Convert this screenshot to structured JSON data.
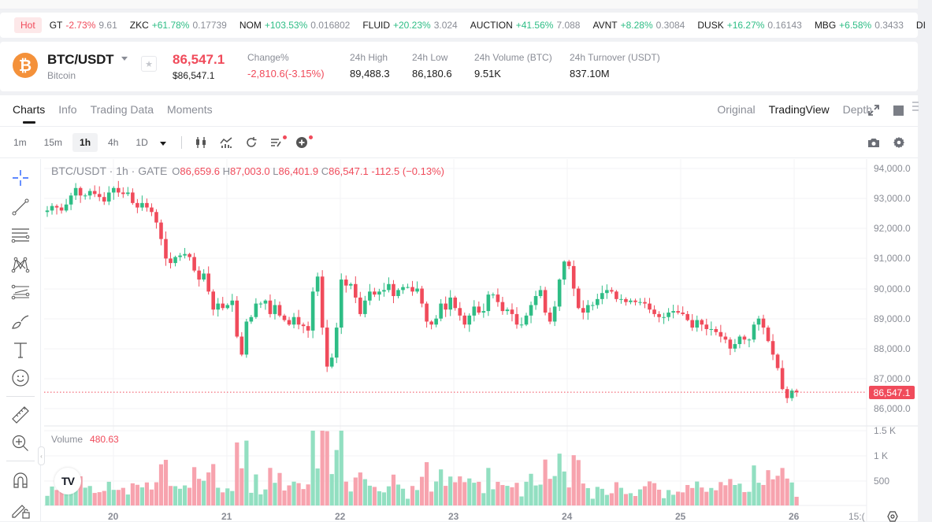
{
  "ticker": {
    "hot_label": "Hot",
    "items": [
      {
        "symbol": "GT",
        "change": "-2.73%",
        "price": "9.61",
        "dir": "neg"
      },
      {
        "symbol": "ZKC",
        "change": "+61.78%",
        "price": "0.17739",
        "dir": "pos"
      },
      {
        "symbol": "NOM",
        "change": "+103.53%",
        "price": "0.016802",
        "dir": "pos"
      },
      {
        "symbol": "FLUID",
        "change": "+20.23%",
        "price": "3.024",
        "dir": "pos"
      },
      {
        "symbol": "AUCTION",
        "change": "+41.56%",
        "price": "7.088",
        "dir": "pos"
      },
      {
        "symbol": "AVNT",
        "change": "+8.28%",
        "price": "0.3084",
        "dir": "pos"
      },
      {
        "symbol": "DUSK",
        "change": "+16.27%",
        "price": "0.16143",
        "dir": "pos"
      },
      {
        "symbol": "MBG",
        "change": "+6.58%",
        "price": "0.3433",
        "dir": "pos"
      },
      {
        "symbol": "DI",
        "change": "",
        "price": "",
        "dir": "pos"
      }
    ]
  },
  "header": {
    "coin_icon": "bitcoin-icon",
    "coin_glyph": "₿",
    "pair": "BTC/USDT",
    "coin_name": "Bitcoin",
    "star_glyph": "★",
    "last_price": "86,547.1",
    "usd_price": "$86,547.1",
    "stats": [
      {
        "label": "Change%",
        "value": "-2,810.6(-3.15%)",
        "dir": "neg"
      },
      {
        "label": "24h High",
        "value": "89,488.3",
        "dir": ""
      },
      {
        "label": "24h Low",
        "value": "86,180.6",
        "dir": ""
      },
      {
        "label": "24h Volume (BTC)",
        "value": "9.51K",
        "dir": ""
      },
      {
        "label": "24h Turnover (USDT)",
        "value": "837.10M",
        "dir": ""
      }
    ]
  },
  "tabs": [
    {
      "label": "Charts",
      "active": true
    },
    {
      "label": "Info",
      "active": false
    },
    {
      "label": "Trading Data",
      "active": false
    },
    {
      "label": "Moments",
      "active": false
    }
  ],
  "views": [
    {
      "label": "Original",
      "active": false
    },
    {
      "label": "TradingView",
      "active": true
    },
    {
      "label": "Depth",
      "active": false
    }
  ],
  "intervals": [
    {
      "label": "1m",
      "active": false
    },
    {
      "label": "15m",
      "active": false
    },
    {
      "label": "1h",
      "active": true
    },
    {
      "label": "4h",
      "active": false
    },
    {
      "label": "1D",
      "active": false
    }
  ],
  "legend": {
    "title": "BTC/USDT · 1h · GATE",
    "o_label": "O",
    "o": "86,659.6",
    "h_label": "H",
    "h": "87,003.0",
    "l_label": "L",
    "l": "86,401.9",
    "c_label": "C",
    "c": "86,547.1",
    "change": "-112.5 (−0.13%)"
  },
  "volume_legend": {
    "label": "Volume",
    "value": "480.63"
  },
  "colors": {
    "up": "#2ebd85",
    "down": "#f04b5b",
    "up_vol": "#92dfc1",
    "down_vol": "#f7a3ae",
    "accent": "#2962ff"
  },
  "price_axis": [
    "94,000.0",
    "93,000.0",
    "92,000.0",
    "91,000.0",
    "90,000.0",
    "89,000.0",
    "88,000.0",
    "87,000.0",
    "86,000.0"
  ],
  "current_price_tag": "86,547.1",
  "volume_axis": [
    "1.5 K",
    "1 K",
    "500"
  ],
  "time_axis": [
    "20",
    "21",
    "22",
    "23",
    "24",
    "25",
    "26",
    "15:("
  ],
  "chart_data": {
    "type": "candlestick",
    "title": "BTC/USDT · 1h · GATE",
    "x_labels": [
      "20",
      "21",
      "22",
      "23",
      "24",
      "25",
      "26"
    ],
    "ylim": [
      85600,
      94200
    ],
    "closes": [
      92600,
      92750,
      92700,
      92600,
      92800,
      93100,
      93350,
      93100,
      93100,
      93250,
      93150,
      93050,
      92900,
      93200,
      93350,
      93200,
      93150,
      93200,
      92850,
      92700,
      92850,
      92700,
      92550,
      92200,
      91650,
      91000,
      90850,
      91050,
      91100,
      91150,
      91050,
      90600,
      90300,
      90500,
      89900,
      89300,
      89500,
      89350,
      89450,
      89600,
      88400,
      87800,
      88900,
      89050,
      89500,
      89500,
      89600,
      89150,
      89450,
      89100,
      88950,
      88800,
      89050,
      88800,
      88750,
      88600,
      89900,
      90400,
      88700,
      87400,
      87700,
      88700,
      90300,
      90100,
      90150,
      89700,
      89150,
      89600,
      89900,
      89800,
      89900,
      89950,
      90150,
      89750,
      89950,
      90050,
      90050,
      89900,
      90000,
      89500,
      88900,
      88800,
      89000,
      89500,
      89300,
      89700,
      89350,
      89100,
      88800,
      89100,
      89400,
      89200,
      89250,
      89800,
      89800,
      89550,
      89250,
      89300,
      89150,
      88800,
      88800,
      89100,
      89450,
      89750,
      89950,
      89200,
      88900,
      89400,
      90300,
      90900,
      90750,
      90000,
      89350,
      89200,
      89450,
      89450,
      89650,
      89850,
      89950,
      89900,
      89650,
      89650,
      89550,
      89600,
      89550,
      89550,
      89500,
      89300,
      89150,
      89050,
      89050,
      89200,
      89250,
      89200,
      89150,
      88950,
      88700,
      88950,
      88800,
      88650,
      88650,
      88550,
      88400,
      88300,
      88000,
      88150,
      88400,
      88300,
      88300,
      88800,
      89000,
      88700,
      88250,
      87800,
      87350,
      86650,
      86350,
      86600,
      86547
    ],
    "volume_ylim": [
      0,
      1600
    ]
  },
  "left_tools": [
    "crosshair-icon",
    "trendline-icon",
    "horizontal-lines-icon",
    "pattern-icon",
    "fib-icon",
    "brush-icon",
    "text-icon",
    "emoji-icon",
    "ruler-icon",
    "zoom-in-icon",
    "magnet-icon",
    "lock-draw-icon"
  ]
}
